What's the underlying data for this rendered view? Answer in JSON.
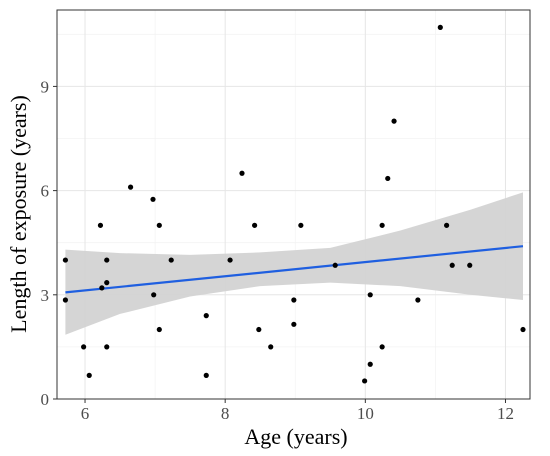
{
  "chart_data": {
    "type": "scatter",
    "title": "",
    "xlabel": "Age (years)",
    "ylabel": "Length of exposure (years)",
    "xlim": [
      5.6,
      12.35
    ],
    "ylim": [
      0,
      11.2
    ],
    "x_ticks": [
      6,
      8,
      10,
      12
    ],
    "x_tick_labels": [
      "6",
      "8",
      "10",
      "12"
    ],
    "y_ticks": [
      0,
      3,
      6,
      9
    ],
    "y_tick_labels": [
      "0",
      "3",
      "6",
      "9"
    ],
    "grid": true,
    "legend": "none",
    "points": [
      {
        "x": 5.72,
        "y": 4.0
      },
      {
        "x": 5.72,
        "y": 2.85
      },
      {
        "x": 5.98,
        "y": 1.5
      },
      {
        "x": 6.06,
        "y": 0.68
      },
      {
        "x": 6.22,
        "y": 5.0
      },
      {
        "x": 6.24,
        "y": 3.2
      },
      {
        "x": 6.31,
        "y": 4.0
      },
      {
        "x": 6.31,
        "y": 3.35
      },
      {
        "x": 6.31,
        "y": 1.5
      },
      {
        "x": 6.65,
        "y": 6.1
      },
      {
        "x": 6.97,
        "y": 5.75
      },
      {
        "x": 6.98,
        "y": 3.0
      },
      {
        "x": 7.06,
        "y": 5.0
      },
      {
        "x": 7.06,
        "y": 2.0
      },
      {
        "x": 7.23,
        "y": 4.0
      },
      {
        "x": 7.73,
        "y": 2.4
      },
      {
        "x": 7.73,
        "y": 0.68
      },
      {
        "x": 8.07,
        "y": 4.0
      },
      {
        "x": 8.24,
        "y": 6.5
      },
      {
        "x": 8.42,
        "y": 5.0
      },
      {
        "x": 8.48,
        "y": 2.0
      },
      {
        "x": 8.65,
        "y": 1.5
      },
      {
        "x": 8.98,
        "y": 2.85
      },
      {
        "x": 8.98,
        "y": 2.15
      },
      {
        "x": 9.08,
        "y": 5.0
      },
      {
        "x": 9.57,
        "y": 3.85
      },
      {
        "x": 9.99,
        "y": 0.52
      },
      {
        "x": 10.07,
        "y": 3.0
      },
      {
        "x": 10.07,
        "y": 1.0
      },
      {
        "x": 10.24,
        "y": 5.0
      },
      {
        "x": 10.24,
        "y": 1.5
      },
      {
        "x": 10.32,
        "y": 6.35
      },
      {
        "x": 10.41,
        "y": 8.0
      },
      {
        "x": 10.75,
        "y": 2.85
      },
      {
        "x": 11.07,
        "y": 10.7
      },
      {
        "x": 11.16,
        "y": 5.0
      },
      {
        "x": 11.24,
        "y": 3.85
      },
      {
        "x": 11.49,
        "y": 3.85
      },
      {
        "x": 12.25,
        "y": 2.0
      }
    ],
    "fit_line": {
      "x": [
        5.72,
        12.25
      ],
      "y": [
        3.07,
        4.4
      ]
    },
    "confidence_band": {
      "x": [
        5.72,
        6.5,
        7.5,
        8.5,
        9.5,
        10.5,
        11.5,
        12.25
      ],
      "lower": [
        1.85,
        2.45,
        2.95,
        3.25,
        3.35,
        3.25,
        3.0,
        2.85
      ],
      "upper": [
        4.3,
        4.2,
        4.15,
        4.22,
        4.35,
        4.85,
        5.45,
        5.95
      ]
    },
    "colors": {
      "point": "#000000",
      "fit_line": "#1f5fe0",
      "confidence_band": "#d3d3d3",
      "grid_major": "#e6e6e6",
      "grid_minor": "#f3f3f3",
      "panel_border": "#333333"
    }
  }
}
